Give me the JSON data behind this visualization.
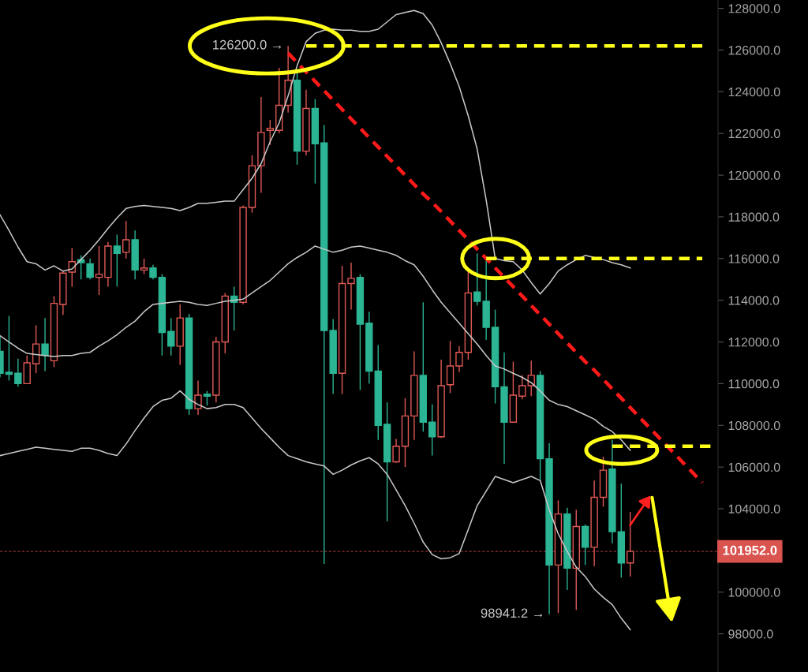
{
  "chart_data": {
    "type": "candlestick",
    "categories": [
      null,
      null,
      null,
      null,
      null,
      null,
      null,
      null,
      null,
      null,
      null,
      null,
      null,
      null,
      null,
      null,
      null,
      null,
      null,
      null,
      null,
      null,
      null,
      null,
      null,
      null,
      null,
      null,
      null,
      null,
      null,
      null,
      null,
      null,
      null,
      null,
      null,
      null,
      null,
      null,
      null,
      null,
      null,
      null,
      null,
      null,
      null,
      null,
      null,
      null,
      null,
      null,
      null,
      null,
      null,
      null,
      null,
      null,
      null,
      null,
      null,
      null,
      null,
      null,
      null,
      null,
      null,
      null,
      null,
      null,
      null,
      null,
      null,
      null,
      null,
      null,
      null,
      null,
      null,
      null
    ],
    "ohlc": [
      [
        111550,
        112300,
        110300,
        110500
      ],
      [
        110550,
        113250,
        110150,
        110450
      ],
      [
        110500,
        111200,
        109850,
        110000
      ],
      [
        110000,
        111350,
        110000,
        111000
      ],
      [
        110950,
        112800,
        110500,
        111900
      ],
      [
        111900,
        113150,
        110600,
        111350
      ],
      [
        111100,
        114200,
        110800,
        113850
      ],
      [
        113800,
        115400,
        113300,
        115300
      ],
      [
        115350,
        116500,
        114650,
        115850
      ],
      [
        115950,
        116150,
        115000,
        115800
      ],
      [
        115750,
        116000,
        115000,
        115100
      ],
      [
        115100,
        116600,
        114250,
        115250
      ],
      [
        115100,
        116800,
        114650,
        116600
      ],
      [
        116600,
        117150,
        114650,
        116250
      ],
      [
        116300,
        117800,
        116000,
        116900
      ],
      [
        116900,
        117350,
        115000,
        115450
      ],
      [
        115450,
        116000,
        115250,
        115550
      ],
      [
        115550,
        115700,
        115000,
        115100
      ],
      [
        115100,
        115250,
        111350,
        112450
      ],
      [
        112500,
        113150,
        111350,
        111800
      ],
      [
        111800,
        113800,
        110900,
        113150
      ],
      [
        113150,
        113350,
        108500,
        108800
      ],
      [
        108800,
        110150,
        108500,
        109450
      ],
      [
        109500,
        109650,
        108950,
        109400
      ],
      [
        109450,
        112250,
        109100,
        112000
      ],
      [
        112000,
        114350,
        111450,
        114200
      ],
      [
        114200,
        114650,
        112550,
        113900
      ],
      [
        113900,
        118550,
        113800,
        118450
      ],
      [
        118450,
        120950,
        118200,
        120450
      ],
      [
        120450,
        123750,
        119150,
        122050
      ],
      [
        122150,
        122650,
        121450,
        122250
      ],
      [
        122150,
        125150,
        122000,
        123350
      ],
      [
        123350,
        126200,
        123000,
        124550
      ],
      [
        124550,
        125000,
        120500,
        121150
      ],
      [
        121150,
        124100,
        120950,
        123200
      ],
      [
        123200,
        123650,
        119600,
        121500
      ],
      [
        121550,
        122400,
        101350,
        112550
      ],
      [
        112550,
        113100,
        109500,
        110500
      ],
      [
        110500,
        115650,
        109500,
        114800
      ],
      [
        114800,
        115800,
        113550,
        115050
      ],
      [
        115100,
        115250,
        109700,
        112850
      ],
      [
        112900,
        113450,
        110000,
        110600
      ],
      [
        110600,
        111850,
        107300,
        108000
      ],
      [
        108050,
        109100,
        103400,
        106250
      ],
      [
        106250,
        107350,
        106200,
        107000
      ],
      [
        107000,
        109300,
        106000,
        108450
      ],
      [
        108450,
        111550,
        107300,
        110400
      ],
      [
        110400,
        113900,
        107700,
        108150
      ],
      [
        108150,
        109000,
        106550,
        107450
      ],
      [
        107450,
        111150,
        107400,
        109900
      ],
      [
        109950,
        112050,
        109550,
        110850
      ],
      [
        110850,
        111800,
        110550,
        111500
      ],
      [
        111500,
        115450,
        111150,
        114350
      ],
      [
        114400,
        116250,
        113750,
        113950
      ],
      [
        113950,
        116000,
        112100,
        112700
      ],
      [
        112700,
        113550,
        109050,
        109850
      ],
      [
        109850,
        111500,
        106150,
        108150
      ],
      [
        108150,
        111050,
        108150,
        109450
      ],
      [
        109400,
        110400,
        109250,
        109900
      ],
      [
        109900,
        111100,
        109400,
        110400
      ],
      [
        110400,
        110600,
        105350,
        106400
      ],
      [
        106400,
        107150,
        98941.2,
        101300
      ],
      [
        101300,
        104400,
        99000,
        103750
      ],
      [
        103750,
        104050,
        100100,
        101150
      ],
      [
        101150,
        103950,
        99150,
        103150
      ],
      [
        103150,
        103250,
        101300,
        102150
      ],
      [
        102150,
        105350,
        101250,
        104550
      ],
      [
        104550,
        106500,
        104100,
        105850
      ],
      [
        105900,
        107300,
        102350,
        102900
      ],
      [
        102900,
        105200,
        100700,
        101400
      ],
      [
        101400,
        103850,
        100750,
        101952
      ],
      null,
      null,
      null,
      null,
      null,
      null,
      null,
      null,
      null
    ],
    "colors": [
      "#2bb594",
      "#2bb594",
      "#2bb594",
      "#e05a55",
      "#e05a55",
      "#2bb594",
      "#e05a55",
      "#e05a55",
      "#e05a55",
      "#2bb594",
      "#2bb594",
      "#e05a55",
      "#e05a55",
      "#2bb594",
      "#e05a55",
      "#2bb594",
      "#e05a55",
      "#2bb594",
      "#2bb594",
      "#2bb594",
      "#e05a55",
      "#2bb594",
      "#e05a55",
      "#2bb594",
      "#e05a55",
      "#e05a55",
      "#2bb594",
      "#e05a55",
      "#e05a55",
      "#e05a55",
      "#e05a55",
      "#e05a55",
      "#e05a55",
      "#2bb594",
      "#e05a55",
      "#2bb594",
      "#2bb594",
      "#2bb594",
      "#e05a55",
      "#e05a55",
      "#2bb594",
      "#2bb594",
      "#2bb594",
      "#2bb594",
      "#e05a55",
      "#e05a55",
      "#e05a55",
      "#2bb594",
      "#2bb594",
      "#e05a55",
      "#e05a55",
      "#e05a55",
      "#e05a55",
      "#2bb594",
      "#2bb594",
      "#2bb594",
      "#2bb594",
      "#e05a55",
      "#e05a55",
      "#e05a55",
      "#2bb594",
      "#2bb594",
      "#e05a55",
      "#2bb594",
      "#e05a55",
      "#2bb594",
      "#e05a55",
      "#e05a55",
      "#2bb594",
      "#2bb594",
      "#e05a55",
      null,
      null,
      null,
      null,
      null,
      null,
      null,
      null,
      null
    ],
    "series": [
      {
        "type": "line",
        "color": "#c8c8c8",
        "values": [
          118100,
          117350,
          116550,
          115850,
          115750,
          115450,
          115650,
          115400,
          115500,
          115950,
          116400,
          116900,
          117450,
          117950,
          118400,
          118500,
          118550,
          118500,
          118450,
          118400,
          118300,
          118450,
          118650,
          118650,
          118700,
          118750,
          118750,
          119300,
          119850,
          120550,
          121600,
          122500,
          123800,
          125250,
          126400,
          126800,
          126950,
          127000,
          126950,
          126950,
          126900,
          126900,
          127000,
          127350,
          127700,
          127800,
          127900,
          127750,
          127200,
          126350,
          125350,
          124250,
          122850,
          121250,
          118800,
          116000,
          115900,
          115850,
          115450,
          114850,
          114300,
          114800,
          115400,
          115700,
          115950,
          116150,
          116050,
          115950,
          115800,
          115700,
          115550,
          null,
          null,
          null,
          null,
          null,
          null,
          null,
          null,
          null
        ]
      },
      {
        "type": "line",
        "color": "#c8c8c8",
        "values": [
          112300,
          112000,
          111700,
          111450,
          111400,
          111350,
          111300,
          111350,
          111350,
          111450,
          111500,
          111800,
          112050,
          112350,
          112700,
          113000,
          113450,
          113800,
          113850,
          113900,
          113950,
          113900,
          113800,
          113750,
          113850,
          113950,
          114000,
          114050,
          114350,
          114650,
          114950,
          115350,
          115750,
          116050,
          116300,
          116600,
          116450,
          116300,
          116400,
          116550,
          116600,
          116500,
          116400,
          116300,
          116150,
          115900,
          115700,
          115150,
          114500,
          113900,
          113400,
          112900,
          112400,
          111900,
          111350,
          110850,
          110700,
          110500,
          110300,
          110050,
          109650,
          109200,
          109000,
          108900,
          108700,
          108500,
          108300,
          107950,
          107700,
          107300,
          106800,
          null,
          null,
          null,
          null,
          null,
          null,
          null,
          null,
          null
        ]
      },
      {
        "type": "line",
        "color": "#c8c8c8",
        "values": [
          106550,
          106650,
          106750,
          106850,
          106950,
          106900,
          106850,
          106800,
          106750,
          106900,
          106900,
          106800,
          106650,
          106550,
          107100,
          107750,
          108350,
          108900,
          109200,
          109300,
          109650,
          109250,
          109000,
          108800,
          108850,
          109000,
          109000,
          108850,
          108350,
          107850,
          107400,
          106950,
          106550,
          106400,
          106250,
          106150,
          106050,
          105650,
          105850,
          106100,
          106300,
          106450,
          106150,
          105650,
          104900,
          104150,
          103300,
          102400,
          101800,
          101600,
          101650,
          101850,
          103000,
          104150,
          104850,
          105550,
          105400,
          105250,
          105400,
          105550,
          105350,
          103950,
          102800,
          101950,
          101200,
          100750,
          100150,
          99750,
          99400,
          98750,
          98200,
          null,
          null,
          null,
          null,
          null,
          null,
          null,
          null,
          null
        ]
      },
      {
        "type": "line",
        "color": "#ff1a1a",
        "line_style": "dashed",
        "values": [
          null,
          null,
          null,
          null,
          null,
          null,
          null,
          null,
          null,
          null,
          null,
          null,
          null,
          null,
          null,
          null,
          null,
          null,
          null,
          null,
          null,
          null,
          null,
          null,
          null,
          null,
          null,
          null,
          null,
          null,
          null,
          null,
          125850,
          125400,
          124950,
          124500,
          124050,
          123600,
          123150,
          122700,
          122250,
          121800,
          121350,
          120900,
          120450,
          120000,
          119550,
          119100,
          118700,
          118250,
          117800,
          117350,
          116900,
          116450,
          116000,
          115550,
          115100,
          114650,
          114200,
          113750,
          113300,
          112850,
          112400,
          111950,
          111500,
          111050,
          110650,
          110200,
          109750,
          109300,
          108850,
          108400,
          107950,
          107500,
          107050,
          106600,
          106150,
          105700,
          105250,
          null
        ]
      },
      {
        "type": "line",
        "color": "#ffff1a",
        "line_style": "dashed",
        "values": [
          null,
          null,
          null,
          null,
          null,
          null,
          null,
          null,
          null,
          null,
          null,
          null,
          null,
          null,
          null,
          null,
          null,
          null,
          null,
          null,
          null,
          null,
          null,
          null,
          null,
          null,
          null,
          null,
          null,
          null,
          null,
          null,
          null,
          null,
          126200,
          126200,
          126200,
          126200,
          126200,
          126200,
          126200,
          126200,
          126200,
          126200,
          126200,
          126200,
          126200,
          126200,
          126200,
          126200,
          126200,
          126200,
          126200,
          126200,
          126200,
          126200,
          126200,
          126200,
          126200,
          126200,
          126200,
          126200,
          126200,
          126200,
          126200,
          126200,
          126200,
          126200,
          126200,
          126200,
          126200,
          126200,
          126200,
          126200,
          126200,
          126200,
          126200,
          126200,
          126200,
          null
        ]
      },
      {
        "type": "line",
        "color": "#ffff1a",
        "line_style": "dashed",
        "values": [
          null,
          null,
          null,
          null,
          null,
          null,
          null,
          null,
          null,
          null,
          null,
          null,
          null,
          null,
          null,
          null,
          null,
          null,
          null,
          null,
          null,
          null,
          null,
          null,
          null,
          null,
          null,
          null,
          null,
          null,
          null,
          null,
          null,
          null,
          null,
          null,
          null,
          null,
          null,
          null,
          null,
          null,
          null,
          null,
          null,
          null,
          null,
          null,
          null,
          null,
          null,
          null,
          null,
          null,
          116000,
          116000,
          116000,
          116000,
          116000,
          116000,
          116000,
          116000,
          116000,
          116000,
          116000,
          116000,
          116000,
          116000,
          116000,
          116000,
          116000,
          116000,
          116000,
          116000,
          116000,
          116000,
          116000,
          116000,
          116000,
          null
        ]
      },
      {
        "type": "line",
        "color": "#ffff1a",
        "line_style": "dashed",
        "values": [
          null,
          null,
          null,
          null,
          null,
          null,
          null,
          null,
          null,
          null,
          null,
          null,
          null,
          null,
          null,
          null,
          null,
          null,
          null,
          null,
          null,
          null,
          null,
          null,
          null,
          null,
          null,
          null,
          null,
          null,
          null,
          null,
          null,
          null,
          null,
          null,
          null,
          null,
          null,
          null,
          null,
          null,
          null,
          null,
          null,
          null,
          null,
          null,
          null,
          null,
          null,
          null,
          null,
          null,
          null,
          null,
          null,
          null,
          null,
          null,
          null,
          null,
          null,
          null,
          null,
          null,
          null,
          null,
          107000,
          107000,
          107000,
          107000,
          107000,
          107000,
          107000,
          107000,
          107000,
          107000,
          107000,
          107000
        ]
      }
    ],
    "ylim": [
      96170,
      128400
    ],
    "yticks": [
      {
        "value": 98000,
        "label": "98000.0"
      },
      {
        "value": 100000,
        "label": "100000.0"
      },
      {
        "value": 104000,
        "label": "104000.0"
      },
      {
        "value": 106000,
        "label": "106000.0"
      },
      {
        "value": 108000,
        "label": "108000.0"
      },
      {
        "value": 110000,
        "label": "110000.0"
      },
      {
        "value": 112000,
        "label": "112000.0"
      },
      {
        "value": 114000,
        "label": "114000.0"
      },
      {
        "value": 116000,
        "label": "116000.0"
      },
      {
        "value": 118000,
        "label": "118000.0"
      },
      {
        "value": 120000,
        "label": "120000.0"
      },
      {
        "value": 122000,
        "label": "122000.0"
      },
      {
        "value": 124000,
        "label": "124000.0"
      },
      {
        "value": 126000,
        "label": "126000.0"
      },
      {
        "value": 128000,
        "label": "128000.0"
      }
    ],
    "ref_lines": [
      {
        "axis": "y",
        "value": 101952,
        "label": "101952.0",
        "color": "#d9534f",
        "line_style": "dashed"
      }
    ],
    "annotations": [
      "126200.0 →",
      "98941.2 →"
    ],
    "tick_labels": "y",
    "grid": false
  }
}
